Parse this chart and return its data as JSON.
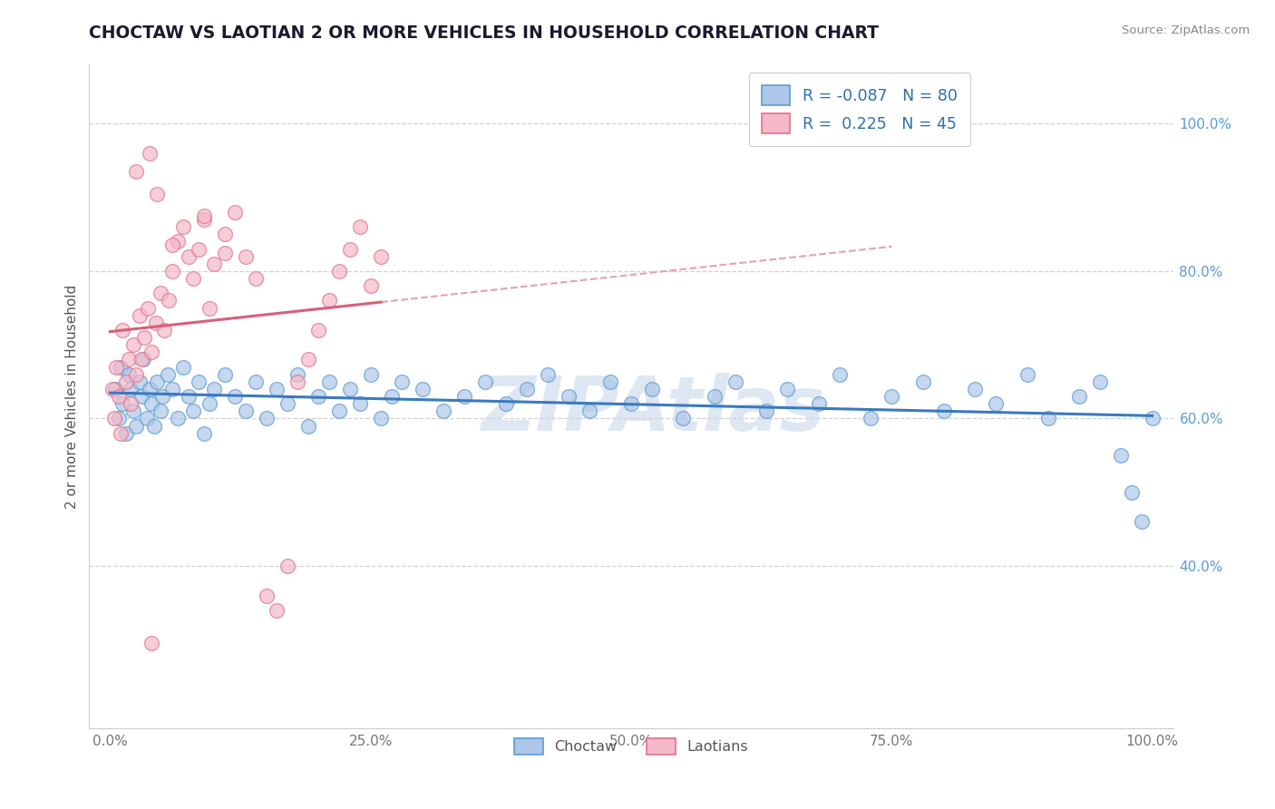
{
  "title": "CHOCTAW VS LAOTIAN 2 OR MORE VEHICLES IN HOUSEHOLD CORRELATION CHART",
  "source": "Source: ZipAtlas.com",
  "ylabel": "2 or more Vehicles in Household",
  "xlim": [
    -0.02,
    1.02
  ],
  "ylim": [
    0.18,
    1.08
  ],
  "x_ticks": [
    0.0,
    0.25,
    0.5,
    0.75,
    1.0
  ],
  "y_ticks": [
    0.4,
    0.6,
    0.8,
    1.0
  ],
  "legend_r_choctaw": "-0.087",
  "legend_n_choctaw": "80",
  "legend_r_laotian": "0.225",
  "legend_n_laotian": "45",
  "choctaw_fill": "#aec6e8",
  "choctaw_edge": "#5b9bd5",
  "laotian_fill": "#f5b8c8",
  "laotian_edge": "#e0728a",
  "choctaw_line_color": "#3a7abf",
  "laotian_line_color": "#d95f7a",
  "laotian_dash_color": "#e8a0b0",
  "watermark_color": "#c8d8ea",
  "grid_color": "#cccccc",
  "title_color": "#1a1a2e",
  "label_color": "#555555",
  "tick_color": "#5b9bd5",
  "source_color": "#888888",
  "background_color": "#ffffff",
  "choctaw_x": [
    0.005,
    0.008,
    0.01,
    0.012,
    0.015,
    0.018,
    0.02,
    0.022,
    0.025,
    0.028,
    0.03,
    0.032,
    0.035,
    0.038,
    0.04,
    0.042,
    0.045,
    0.048,
    0.05,
    0.055,
    0.06,
    0.065,
    0.07,
    0.075,
    0.08,
    0.085,
    0.09,
    0.095,
    0.1,
    0.11,
    0.12,
    0.13,
    0.14,
    0.15,
    0.16,
    0.17,
    0.18,
    0.19,
    0.2,
    0.21,
    0.22,
    0.23,
    0.24,
    0.25,
    0.26,
    0.27,
    0.28,
    0.3,
    0.32,
    0.34,
    0.36,
    0.38,
    0.4,
    0.42,
    0.44,
    0.46,
    0.48,
    0.5,
    0.52,
    0.55,
    0.58,
    0.6,
    0.63,
    0.65,
    0.68,
    0.7,
    0.73,
    0.75,
    0.78,
    0.8,
    0.83,
    0.85,
    0.88,
    0.9,
    0.93,
    0.95,
    0.97,
    0.98,
    0.99,
    1.0
  ],
  "choctaw_y": [
    0.64,
    0.6,
    0.67,
    0.62,
    0.58,
    0.66,
    0.64,
    0.61,
    0.59,
    0.65,
    0.63,
    0.68,
    0.6,
    0.64,
    0.62,
    0.59,
    0.65,
    0.61,
    0.63,
    0.66,
    0.64,
    0.6,
    0.67,
    0.63,
    0.61,
    0.65,
    0.58,
    0.62,
    0.64,
    0.66,
    0.63,
    0.61,
    0.65,
    0.6,
    0.64,
    0.62,
    0.66,
    0.59,
    0.63,
    0.65,
    0.61,
    0.64,
    0.62,
    0.66,
    0.6,
    0.63,
    0.65,
    0.64,
    0.61,
    0.63,
    0.65,
    0.62,
    0.64,
    0.66,
    0.63,
    0.61,
    0.65,
    0.62,
    0.64,
    0.6,
    0.63,
    0.65,
    0.61,
    0.64,
    0.62,
    0.66,
    0.6,
    0.63,
    0.65,
    0.61,
    0.64,
    0.62,
    0.66,
    0.6,
    0.63,
    0.65,
    0.55,
    0.5,
    0.46,
    0.6
  ],
  "laotian_x": [
    0.002,
    0.004,
    0.006,
    0.008,
    0.01,
    0.012,
    0.015,
    0.018,
    0.02,
    0.022,
    0.025,
    0.028,
    0.03,
    0.033,
    0.036,
    0.04,
    0.044,
    0.048,
    0.052,
    0.056,
    0.06,
    0.065,
    0.07,
    0.075,
    0.08,
    0.085,
    0.09,
    0.095,
    0.1,
    0.11,
    0.12,
    0.13,
    0.14,
    0.15,
    0.16,
    0.17,
    0.18,
    0.19,
    0.2,
    0.21,
    0.22,
    0.23,
    0.24,
    0.25,
    0.26
  ],
  "laotian_y": [
    0.64,
    0.6,
    0.67,
    0.63,
    0.58,
    0.72,
    0.65,
    0.68,
    0.62,
    0.7,
    0.66,
    0.74,
    0.68,
    0.71,
    0.75,
    0.69,
    0.73,
    0.77,
    0.72,
    0.76,
    0.8,
    0.84,
    0.86,
    0.82,
    0.79,
    0.83,
    0.87,
    0.75,
    0.81,
    0.85,
    0.88,
    0.82,
    0.79,
    0.36,
    0.34,
    0.4,
    0.65,
    0.68,
    0.72,
    0.76,
    0.8,
    0.83,
    0.86,
    0.78,
    0.82
  ],
  "laotian_isolated_x": [
    0.025,
    0.038,
    0.045,
    0.06,
    0.09,
    0.11,
    0.04
  ],
  "laotian_isolated_y": [
    0.935,
    0.96,
    0.905,
    0.835,
    0.875,
    0.825,
    0.295
  ]
}
